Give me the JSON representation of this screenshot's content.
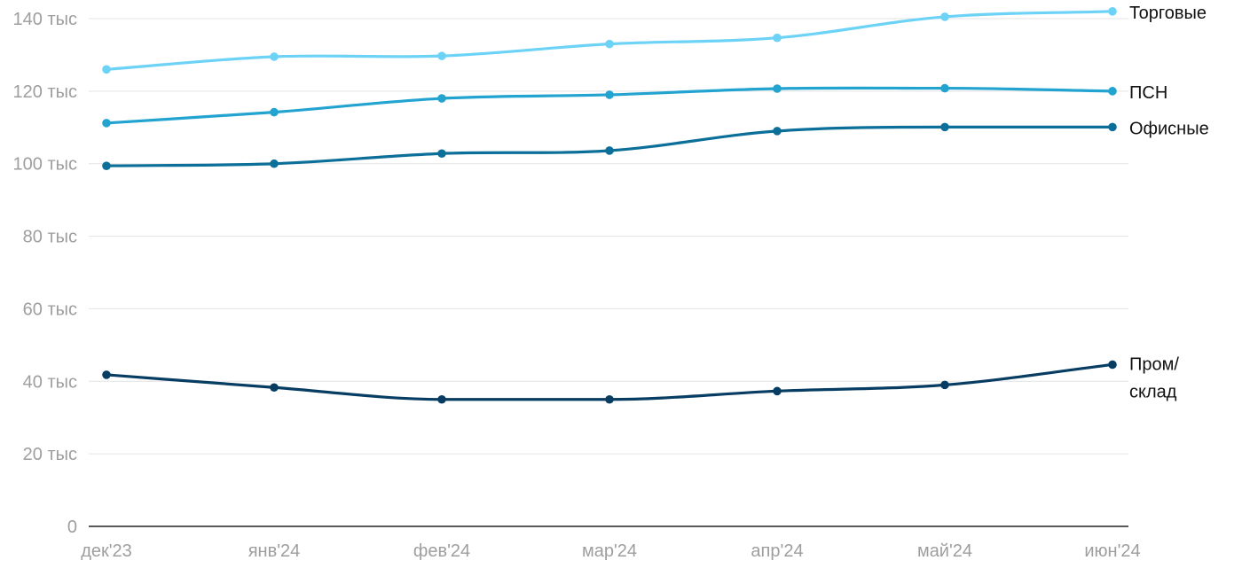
{
  "chart_data": {
    "type": "line",
    "x": [
      "дек'23",
      "янв'24",
      "фев'24",
      "мар'24",
      "апр'24",
      "май'24",
      "июн'24"
    ],
    "y_ticks": [
      0,
      20000,
      40000,
      60000,
      80000,
      100000,
      120000,
      140000
    ],
    "y_tick_labels": [
      "0",
      "20 тыс",
      "40 тыс",
      "60 тыс",
      "80 тыс",
      "100 тыс",
      "120 тыс",
      "140 тыс"
    ],
    "ylim": [
      0,
      140000
    ],
    "grid": true,
    "legend": "none",
    "series": [
      {
        "name": "Торговые",
        "label_lines": [
          "Торговые"
        ],
        "color": "#6dd3f6",
        "values": [
          126000,
          129500,
          129700,
          133000,
          134700,
          140500,
          142000
        ]
      },
      {
        "name": "ПСН",
        "label_lines": [
          "ПСН"
        ],
        "color": "#22a3d0",
        "values": [
          111200,
          114200,
          118000,
          119000,
          120700,
          120800,
          120000
        ]
      },
      {
        "name": "Офисные",
        "label_lines": [
          "Офисные"
        ],
        "color": "#0b6f99",
        "values": [
          99400,
          100000,
          102800,
          103600,
          109000,
          110100,
          110100
        ]
      },
      {
        "name": "Пром/склад",
        "label_lines": [
          "Пром/",
          "склад"
        ],
        "color": "#083d63",
        "values": [
          41800,
          38300,
          35000,
          35000,
          37300,
          39000,
          44600
        ]
      }
    ]
  }
}
